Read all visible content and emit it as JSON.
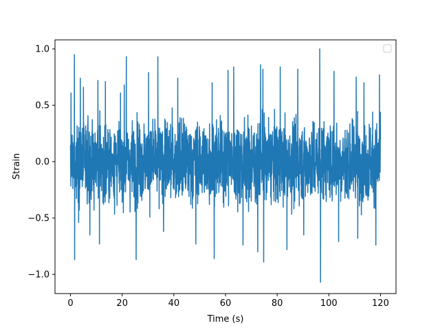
{
  "chart_data": {
    "type": "line",
    "title": "",
    "xlabel": "Time (s)",
    "ylabel": "Strain",
    "xlim": [
      -6,
      126
    ],
    "ylim": [
      -1.17,
      1.08
    ],
    "x_ticks": [
      {
        "value": 0,
        "label": "0"
      },
      {
        "value": 20,
        "label": "20"
      },
      {
        "value": 40,
        "label": "40"
      },
      {
        "value": 60,
        "label": "60"
      },
      {
        "value": 80,
        "label": "80"
      },
      {
        "value": 100,
        "label": "100"
      },
      {
        "value": 120,
        "label": "120"
      }
    ],
    "y_ticks": [
      {
        "value": -1.0,
        "label": "−1.0"
      },
      {
        "value": -0.5,
        "label": "−0.5"
      },
      {
        "value": 0.0,
        "label": "0.0"
      },
      {
        "value": 0.5,
        "label": "0.5"
      },
      {
        "value": 1.0,
        "label": "1.0"
      }
    ],
    "grid": false,
    "legend": {
      "placement": "top-right",
      "entries": []
    },
    "series": [
      {
        "color": "#1f77b4",
        "x_range": [
          0,
          120
        ],
        "typical_band": [
          -0.45,
          0.45
        ],
        "peaks": [
          {
            "x": 0.2,
            "y": 0.61
          },
          {
            "x": 1.5,
            "y": 0.95
          },
          {
            "x": 1.6,
            "y": -0.87
          },
          {
            "x": 3.8,
            "y": 0.74
          },
          {
            "x": 5.0,
            "y": 0.66
          },
          {
            "x": 7.5,
            "y": -0.65
          },
          {
            "x": 10.6,
            "y": 0.72
          },
          {
            "x": 11.2,
            "y": -0.73
          },
          {
            "x": 13.5,
            "y": 0.71
          },
          {
            "x": 20.8,
            "y": 0.68
          },
          {
            "x": 21.6,
            "y": 0.93
          },
          {
            "x": 25.4,
            "y": -0.87
          },
          {
            "x": 30.2,
            "y": 0.79
          },
          {
            "x": 33.8,
            "y": 0.93
          },
          {
            "x": 36.0,
            "y": -0.62
          },
          {
            "x": 41.5,
            "y": 0.74
          },
          {
            "x": 48.5,
            "y": -0.73
          },
          {
            "x": 54.8,
            "y": 0.7
          },
          {
            "x": 55.6,
            "y": -0.86
          },
          {
            "x": 61.0,
            "y": 0.81
          },
          {
            "x": 63.2,
            "y": 0.84
          },
          {
            "x": 66.8,
            "y": -0.74
          },
          {
            "x": 72.5,
            "y": -0.8
          },
          {
            "x": 73.6,
            "y": 0.86
          },
          {
            "x": 74.5,
            "y": 0.82
          },
          {
            "x": 74.8,
            "y": -0.89
          },
          {
            "x": 81.2,
            "y": 0.84
          },
          {
            "x": 83.8,
            "y": -0.78
          },
          {
            "x": 88.0,
            "y": 0.82
          },
          {
            "x": 90.3,
            "y": -0.65
          },
          {
            "x": 96.5,
            "y": 1.0
          },
          {
            "x": 96.8,
            "y": -1.07
          },
          {
            "x": 102.0,
            "y": 0.8
          },
          {
            "x": 103.8,
            "y": -0.71
          },
          {
            "x": 110.6,
            "y": 0.75
          },
          {
            "x": 111.2,
            "y": -0.68
          },
          {
            "x": 113.6,
            "y": 0.7
          },
          {
            "x": 118.2,
            "y": -0.74
          },
          {
            "x": 119.6,
            "y": 0.77
          },
          {
            "x": 120.0,
            "y": 0.19
          }
        ]
      }
    ]
  }
}
